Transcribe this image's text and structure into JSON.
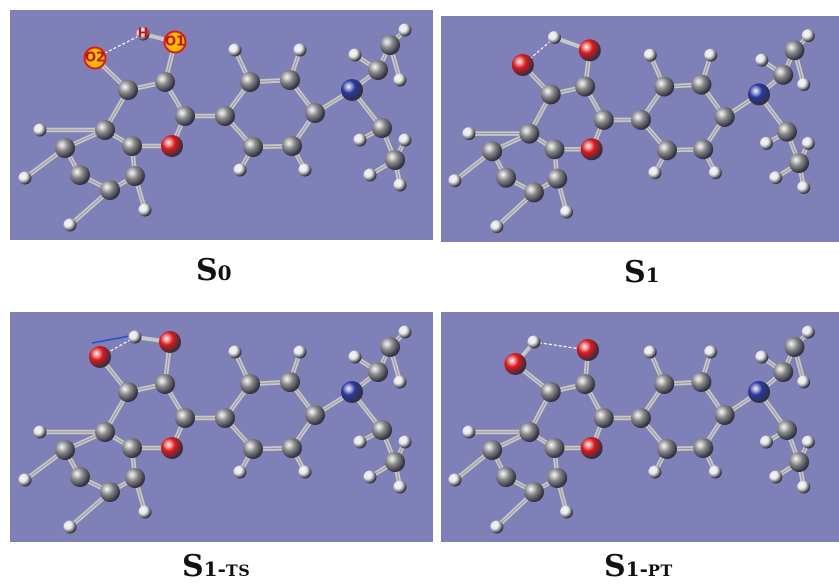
{
  "panels": [
    {
      "id": "S0",
      "label_main": "S",
      "label_sub": "0",
      "label_suffix": ""
    },
    {
      "id": "S1",
      "label_main": "S",
      "label_sub": "1",
      "label_suffix": ""
    },
    {
      "id": "S1-TS",
      "label_main": "S",
      "label_sub": "1-",
      "label_suffix": "TS"
    },
    {
      "id": "S1-PT",
      "label_main": "S",
      "label_sub": "1-",
      "label_suffix": "PT"
    }
  ],
  "atom_labels": {
    "o2": "O2",
    "o1": "O1",
    "h": "H"
  },
  "colors": {
    "background": "#8080b8",
    "carbon": "#8a8a8a",
    "hydrogen": "#e8e8e8",
    "oxygen": "#e01818",
    "nitrogen": "#2838a0",
    "highlight": "#f2c000"
  }
}
